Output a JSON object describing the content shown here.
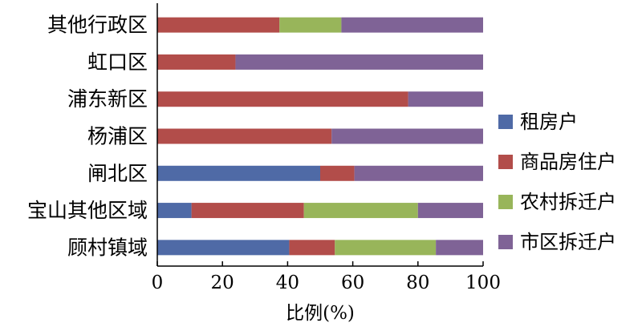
{
  "chart_data": {
    "type": "bar",
    "orientation": "horizontal",
    "stacked": true,
    "categories": [
      "其他行政区",
      "虹口区",
      "浦东新区",
      "杨浦区",
      "闸北区",
      "宝山其他区域",
      "顾村镇域"
    ],
    "series": [
      {
        "name": "租房户",
        "color": "#4F6AA6",
        "values": [
          0,
          0,
          0,
          0,
          50,
          10.5,
          40.5
        ]
      },
      {
        "name": "商品房住户",
        "color": "#B24D4A",
        "values": [
          37.5,
          24,
          77,
          53.5,
          10.5,
          34.5,
          14
        ]
      },
      {
        "name": "农村拆迁户",
        "color": "#98B55A",
        "values": [
          19,
          0,
          0,
          0,
          0,
          35,
          31
        ]
      },
      {
        "name": "市区拆迁户",
        "color": "#7F6396",
        "values": [
          43.5,
          76,
          23,
          46.5,
          39.5,
          20,
          14.5
        ]
      }
    ],
    "xlabel": "比例(%)",
    "ylabel": "",
    "xlim": [
      0,
      100
    ],
    "xticks": [
      "0",
      "20",
      "40",
      "60",
      "80",
      "100"
    ],
    "grid": false,
    "legend_position": "right"
  }
}
